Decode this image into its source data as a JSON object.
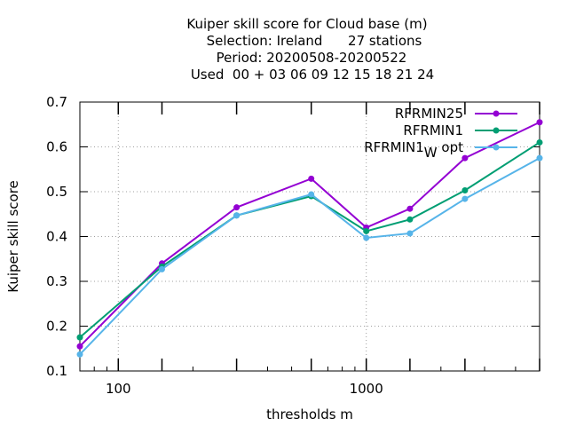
{
  "chart_data": {
    "type": "line",
    "title_lines": [
      "Kuiper skill score  for Cloud base (m)",
      "Selection: Ireland      27 stations",
      "Period: 20200508-20200522",
      "Used  00 + 03 06 09 12 15 18 21 24"
    ],
    "xlabel": "thresholds m",
    "ylabel": "Kuiper skill score",
    "x_scale": "log",
    "xlim": [
      70,
      5000
    ],
    "ylim": [
      0.1,
      0.7
    ],
    "x_tick_labels": [
      {
        "value": 100,
        "label": "100"
      },
      {
        "value": 1000,
        "label": "1000"
      }
    ],
    "x_major_ticks": [
      100,
      150,
      300,
      600,
      1000,
      1500,
      2500,
      5000
    ],
    "y_ticks": [
      {
        "value": 0.1,
        "label": "0.1"
      },
      {
        "value": 0.2,
        "label": "0.2"
      },
      {
        "value": 0.3,
        "label": "0.3"
      },
      {
        "value": 0.4,
        "label": "0.4"
      },
      {
        "value": 0.5,
        "label": "0.5"
      },
      {
        "value": 0.6,
        "label": "0.6"
      },
      {
        "value": 0.7,
        "label": "0.7"
      }
    ],
    "grid": true,
    "legend_position": "top-right",
    "x": [
      70,
      150,
      300,
      600,
      1000,
      1500,
      2500,
      5000
    ],
    "series": [
      {
        "name": "RFRMIN25",
        "color": "#9400d3",
        "values": [
          0.155,
          0.34,
          0.465,
          0.529,
          0.42,
          0.462,
          0.575,
          0.655
        ]
      },
      {
        "name": "RFRMIN1",
        "color": "#009e73",
        "values": [
          0.175,
          0.333,
          0.447,
          0.49,
          0.412,
          0.438,
          0.503,
          0.61
        ]
      },
      {
        "name": "RFRMIN1",
        "name_subscript": "W",
        "name_suffix": " opt",
        "color": "#56b4e9",
        "values": [
          0.137,
          0.327,
          0.447,
          0.494,
          0.397,
          0.407,
          0.484,
          0.575
        ]
      }
    ]
  }
}
